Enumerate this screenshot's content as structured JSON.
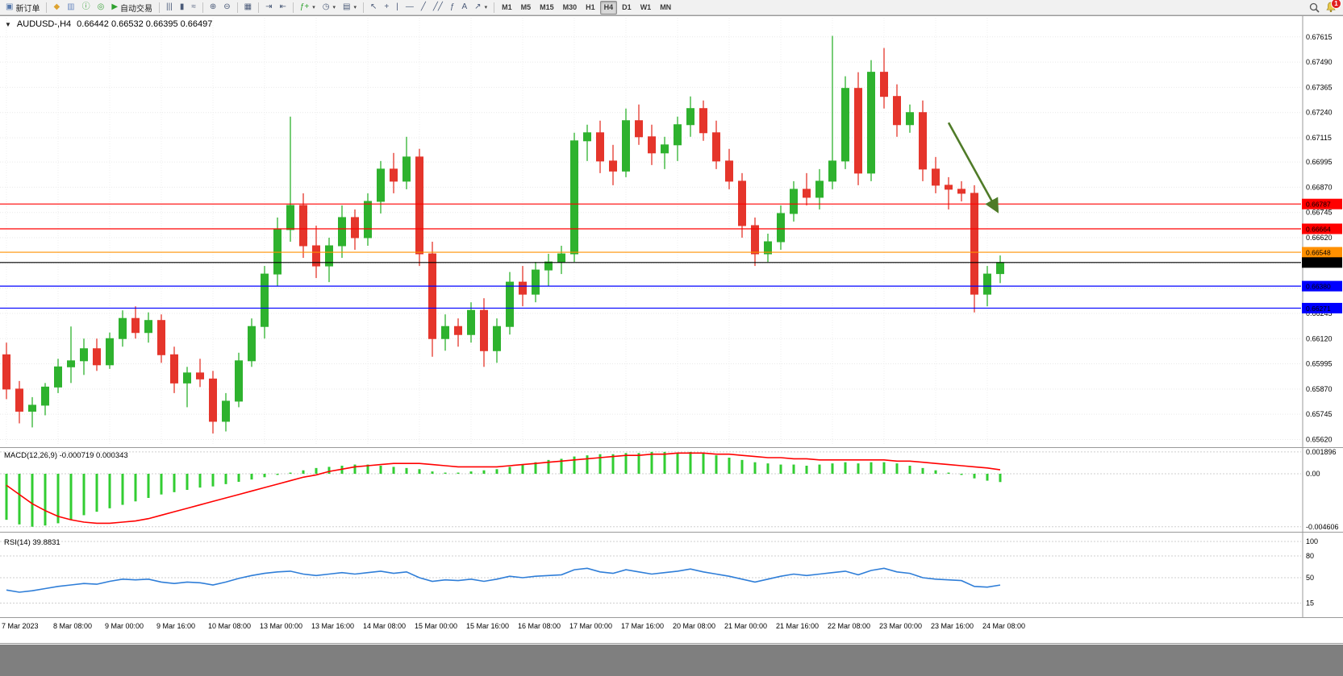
{
  "toolbar": {
    "groups": [
      {
        "items": [
          {
            "name": "new-order",
            "glyph": "▣",
            "glyph_color": "#5577aa",
            "label": "新订单"
          }
        ]
      },
      {
        "items": [
          {
            "name": "market-watch",
            "glyph": "◆",
            "glyph_color": "#dda331"
          },
          {
            "name": "data-window",
            "glyph": "▥",
            "glyph_color": "#6a89c0"
          },
          {
            "name": "navigator",
            "glyph": "ⓘ",
            "glyph_color": "#3fa43f"
          },
          {
            "name": "terminal",
            "glyph": "◎",
            "glyph_color": "#3fa43f"
          },
          {
            "name": "auto-trading",
            "glyph": "▶",
            "glyph_color": "#2fa12f",
            "label": "自动交易"
          }
        ]
      },
      {
        "items": [
          {
            "name": "bar-chart-mode",
            "glyph": "|||"
          },
          {
            "name": "candle-chart-mode",
            "glyph": "▮"
          },
          {
            "name": "line-chart-mode",
            "glyph": "≈"
          }
        ]
      },
      {
        "items": [
          {
            "name": "zoom-in",
            "glyph": "⊕"
          },
          {
            "name": "zoom-out",
            "glyph": "⊖"
          }
        ]
      },
      {
        "items": [
          {
            "name": "tile-windows",
            "glyph": "▦"
          }
        ]
      },
      {
        "items": [
          {
            "name": "auto-scroll",
            "glyph": "⇥"
          },
          {
            "name": "chart-shift",
            "glyph": "⇤"
          }
        ]
      },
      {
        "items": [
          {
            "name": "indicators",
            "glyph": "ƒ+",
            "glyph_color": "#2fa12f",
            "dropdown": true
          },
          {
            "name": "periods",
            "glyph": "◷",
            "dropdown": true
          },
          {
            "name": "templates",
            "glyph": "▤",
            "dropdown": true
          }
        ]
      },
      {
        "items": [
          {
            "name": "cursor-tool",
            "glyph": "↖"
          },
          {
            "name": "crosshair-tool",
            "glyph": "+"
          },
          {
            "name": "vertical-line-tool",
            "glyph": "|"
          },
          {
            "name": "horizontal-line-tool",
            "glyph": "—"
          },
          {
            "name": "trendline-tool",
            "glyph": "╱"
          },
          {
            "name": "channel-tool",
            "glyph": "╱╱"
          },
          {
            "name": "fibonacci-tool",
            "glyph": "ƒ"
          },
          {
            "name": "text-tool",
            "glyph": "A"
          },
          {
            "name": "arrows-tool",
            "glyph": "↗",
            "dropdown": true
          }
        ]
      }
    ],
    "timeframes": [
      "M1",
      "M5",
      "M15",
      "M30",
      "H1",
      "H4",
      "D1",
      "W1",
      "MN"
    ],
    "active_timeframe": "H4",
    "alerts_badge": "1"
  },
  "chart": {
    "header": {
      "collapse_glyph": "▼",
      "symbol_period": "AUDUSD-,H4",
      "ohlc": "0.66442 0.66532 0.66395 0.66497"
    },
    "price_axis": {
      "ticks": [
        "0.67615",
        "0.67490",
        "0.67365",
        "0.67240",
        "0.67115",
        "0.66995",
        "0.66870",
        "0.66745",
        "0.66620",
        "0.66495",
        "0.66370",
        "0.66245",
        "0.66120",
        "0.65995",
        "0.65870",
        "0.65745",
        "0.65620"
      ]
    },
    "price_lines": [
      {
        "label": "0.66787",
        "value": 0.66787,
        "color": "#ff0000"
      },
      {
        "label": "0.66664",
        "value": 0.66664,
        "color": "#ff0000"
      },
      {
        "label": "0.66548",
        "value": 0.66548,
        "color": "#ff9000"
      },
      {
        "label": "0.66497",
        "value": 0.66497,
        "color": "#000000"
      },
      {
        "label": "0.66380",
        "value": 0.6638,
        "color": "#0000ff"
      },
      {
        "label": "0.66271",
        "value": 0.66271,
        "color": "#0000ff"
      }
    ],
    "arrow": {
      "from": {
        "bar": 73,
        "price": 0.6719
      },
      "to": {
        "bar": 76.8,
        "price": 0.6675
      },
      "color": "#4f7b28"
    }
  },
  "chart_data": [
    {
      "type": "candlestick",
      "title": "AUDUSD-,H4",
      "timeframe": "H4",
      "ylim": [
        0.6559,
        0.6771
      ],
      "up_color": "#2eb22e",
      "down_color": "#e5352b",
      "x_tick_every": 4,
      "x_tick_labels": [
        "7 Mar 2023",
        "8 Mar 08:00",
        "9 Mar 00:00",
        "9 Mar 16:00",
        "10 Mar 08:00",
        "13 Mar 00:00",
        "13 Mar 16:00",
        "14 Mar 08:00",
        "15 Mar 00:00",
        "15 Mar 16:00",
        "16 Mar 08:00",
        "17 Mar 00:00",
        "17 Mar 16:00",
        "20 Mar 08:00",
        "21 Mar 00:00",
        "21 Mar 16:00",
        "22 Mar 08:00",
        "23 Mar 00:00",
        "23 Mar 16:00",
        "24 Mar 08:00"
      ],
      "candles": [
        [
          0.6604,
          0.661,
          0.6582,
          0.6587
        ],
        [
          0.6587,
          0.6591,
          0.657,
          0.6576
        ],
        [
          0.6576,
          0.6583,
          0.6568,
          0.6579
        ],
        [
          0.6579,
          0.659,
          0.6574,
          0.6588
        ],
        [
          0.6588,
          0.6602,
          0.6585,
          0.6598
        ],
        [
          0.6598,
          0.6618,
          0.659,
          0.6601
        ],
        [
          0.6601,
          0.6612,
          0.6594,
          0.6607
        ],
        [
          0.6607,
          0.6612,
          0.6596,
          0.6599
        ],
        [
          0.6599,
          0.6615,
          0.6597,
          0.6612
        ],
        [
          0.6612,
          0.6626,
          0.6608,
          0.6622
        ],
        [
          0.6622,
          0.6628,
          0.6612,
          0.6615
        ],
        [
          0.6615,
          0.6625,
          0.661,
          0.6621
        ],
        [
          0.6621,
          0.6624,
          0.66,
          0.6604
        ],
        [
          0.6604,
          0.6608,
          0.6585,
          0.659
        ],
        [
          0.659,
          0.6598,
          0.6578,
          0.6595
        ],
        [
          0.6595,
          0.6602,
          0.6588,
          0.6592
        ],
        [
          0.6592,
          0.6596,
          0.6565,
          0.6571
        ],
        [
          0.6571,
          0.6585,
          0.6566,
          0.6581
        ],
        [
          0.6581,
          0.6605,
          0.6578,
          0.6601
        ],
        [
          0.6601,
          0.6622,
          0.6598,
          0.6618
        ],
        [
          0.6618,
          0.6648,
          0.6612,
          0.6644
        ],
        [
          0.6644,
          0.6672,
          0.6638,
          0.6666
        ],
        [
          0.6666,
          0.6722,
          0.666,
          0.6678
        ],
        [
          0.6678,
          0.6684,
          0.6652,
          0.6658
        ],
        [
          0.6658,
          0.6668,
          0.6642,
          0.6648
        ],
        [
          0.6648,
          0.6662,
          0.664,
          0.6658
        ],
        [
          0.6658,
          0.6678,
          0.6652,
          0.6672
        ],
        [
          0.6672,
          0.6676,
          0.6656,
          0.6662
        ],
        [
          0.6662,
          0.6684,
          0.6658,
          0.668
        ],
        [
          0.668,
          0.67,
          0.6674,
          0.6696
        ],
        [
          0.6696,
          0.6704,
          0.6684,
          0.669
        ],
        [
          0.669,
          0.6712,
          0.6686,
          0.6702
        ],
        [
          0.6702,
          0.6706,
          0.6648,
          0.6654
        ],
        [
          0.6654,
          0.666,
          0.6603,
          0.6612
        ],
        [
          0.6612,
          0.6624,
          0.6606,
          0.6618
        ],
        [
          0.6618,
          0.6622,
          0.6608,
          0.6614
        ],
        [
          0.6614,
          0.663,
          0.661,
          0.6626
        ],
        [
          0.6626,
          0.6632,
          0.6598,
          0.6606
        ],
        [
          0.6606,
          0.6622,
          0.66,
          0.6618
        ],
        [
          0.6618,
          0.6645,
          0.6614,
          0.664
        ],
        [
          0.664,
          0.6648,
          0.6628,
          0.6634
        ],
        [
          0.6634,
          0.665,
          0.663,
          0.6646
        ],
        [
          0.6646,
          0.6654,
          0.6638,
          0.665
        ],
        [
          0.665,
          0.6658,
          0.6644,
          0.6654
        ],
        [
          0.6654,
          0.6714,
          0.665,
          0.671
        ],
        [
          0.671,
          0.6718,
          0.67,
          0.6714
        ],
        [
          0.6714,
          0.672,
          0.6694,
          0.67
        ],
        [
          0.67,
          0.6708,
          0.6688,
          0.6695
        ],
        [
          0.6695,
          0.6726,
          0.6692,
          0.672
        ],
        [
          0.672,
          0.6728,
          0.6708,
          0.6712
        ],
        [
          0.6712,
          0.6718,
          0.6698,
          0.6704
        ],
        [
          0.6704,
          0.6712,
          0.6696,
          0.6708
        ],
        [
          0.6708,
          0.6722,
          0.67,
          0.6718
        ],
        [
          0.6718,
          0.6732,
          0.6712,
          0.6726
        ],
        [
          0.6726,
          0.673,
          0.671,
          0.6714
        ],
        [
          0.6714,
          0.672,
          0.6696,
          0.67
        ],
        [
          0.67,
          0.6706,
          0.6686,
          0.669
        ],
        [
          0.669,
          0.6694,
          0.6662,
          0.6668
        ],
        [
          0.6668,
          0.6672,
          0.6648,
          0.6654
        ],
        [
          0.6654,
          0.6664,
          0.665,
          0.666
        ],
        [
          0.666,
          0.6678,
          0.6656,
          0.6674
        ],
        [
          0.6674,
          0.669,
          0.667,
          0.6686
        ],
        [
          0.6686,
          0.6694,
          0.6678,
          0.6682
        ],
        [
          0.6682,
          0.6696,
          0.6676,
          0.669
        ],
        [
          0.669,
          0.6762,
          0.6686,
          0.67
        ],
        [
          0.67,
          0.6742,
          0.6696,
          0.6736
        ],
        [
          0.6736,
          0.6744,
          0.6688,
          0.6694
        ],
        [
          0.6694,
          0.675,
          0.669,
          0.6744
        ],
        [
          0.6744,
          0.6756,
          0.6726,
          0.6732
        ],
        [
          0.6732,
          0.6738,
          0.6712,
          0.6718
        ],
        [
          0.6718,
          0.6728,
          0.6714,
          0.6724
        ],
        [
          0.6724,
          0.673,
          0.669,
          0.6696
        ],
        [
          0.6696,
          0.6702,
          0.6684,
          0.6688
        ],
        [
          0.6688,
          0.6692,
          0.6676,
          0.6686
        ],
        [
          0.6686,
          0.669,
          0.668,
          0.6684
        ],
        [
          0.6684,
          0.6688,
          0.6625,
          0.6634
        ],
        [
          0.6634,
          0.6648,
          0.6628,
          0.6644
        ],
        [
          0.66442,
          0.66532,
          0.66395,
          0.66497
        ]
      ]
    },
    {
      "type": "macd",
      "title": "MACD(12,26,9)",
      "values_label": "-0.000719 0.000343",
      "levels": [
        "0.001896",
        "0.00",
        "-0.004606"
      ],
      "histogram_color": "#32cd32",
      "signal_color": "#ff0000",
      "histogram": [
        -0.004,
        -0.0044,
        -0.0046,
        -0.0045,
        -0.0043,
        -0.004,
        -0.0036,
        -0.0033,
        -0.003,
        -0.0027,
        -0.0024,
        -0.0021,
        -0.0018,
        -0.0016,
        -0.0014,
        -0.0012,
        -0.0011,
        -0.0009,
        -0.0007,
        -0.0005,
        -0.0003,
        -0.0001,
        0.0001,
        0.0003,
        0.0005,
        0.0006,
        0.0007,
        0.0008,
        0.0008,
        0.0007,
        0.0006,
        0.0005,
        0.0004,
        0.0002,
        0.0001,
        0.0001,
        0.0002,
        0.0003,
        0.0004,
        0.0006,
        0.0008,
        0.001,
        0.0012,
        0.0013,
        0.0015,
        0.0016,
        0.0017,
        0.0017,
        0.0018,
        0.0018,
        0.0019,
        0.0019,
        0.0018,
        0.0019,
        0.0018,
        0.0016,
        0.0014,
        0.0012,
        0.001,
        0.0009,
        0.0008,
        0.0008,
        0.0007,
        0.0008,
        0.0009,
        0.001,
        0.0009,
        0.001,
        0.001,
        0.0009,
        0.0007,
        0.0005,
        0.0003,
        0.0001,
        -0.0001,
        -0.0004,
        -0.0006,
        -0.000719
      ],
      "signal": [
        -0.001,
        -0.0018,
        -0.0026,
        -0.0032,
        -0.0037,
        -0.004,
        -0.0042,
        -0.0043,
        -0.0043,
        -0.0042,
        -0.0041,
        -0.0039,
        -0.0036,
        -0.0033,
        -0.003,
        -0.0027,
        -0.0024,
        -0.0021,
        -0.0018,
        -0.0015,
        -0.0012,
        -0.0009,
        -0.0006,
        -0.0003,
        -0.0001,
        0.0002,
        0.0004,
        0.0006,
        0.0007,
        0.0008,
        0.0009,
        0.0009,
        0.0009,
        0.0008,
        0.0007,
        0.0006,
        0.0006,
        0.0006,
        0.0006,
        0.0007,
        0.0008,
        0.0009,
        0.001,
        0.0011,
        0.0012,
        0.0013,
        0.0014,
        0.0015,
        0.0016,
        0.0016,
        0.0017,
        0.0017,
        0.0018,
        0.0018,
        0.0018,
        0.0017,
        0.0017,
        0.0016,
        0.0015,
        0.0014,
        0.0014,
        0.0013,
        0.0013,
        0.0012,
        0.0012,
        0.0012,
        0.0012,
        0.0012,
        0.0012,
        0.0011,
        0.0011,
        0.001,
        0.0009,
        0.0008,
        0.0007,
        0.0006,
        0.0005,
        0.000343
      ]
    },
    {
      "type": "line",
      "title": "RSI(14)",
      "values_label": "39.8831",
      "ylim": [
        0,
        100
      ],
      "levels": [
        "100",
        "80",
        "50",
        "15"
      ],
      "line_color": "#2f7ed8",
      "values": [
        33,
        30,
        32,
        35,
        38,
        40,
        42,
        41,
        45,
        48,
        47,
        48,
        44,
        42,
        44,
        43,
        40,
        44,
        49,
        53,
        56,
        58,
        59,
        55,
        53,
        55,
        57,
        55,
        57,
        59,
        56,
        58,
        50,
        45,
        47,
        46,
        48,
        45,
        48,
        52,
        50,
        52,
        53,
        54,
        61,
        63,
        58,
        56,
        61,
        58,
        55,
        57,
        59,
        62,
        58,
        55,
        52,
        48,
        44,
        48,
        52,
        55,
        53,
        55,
        57,
        59,
        54,
        60,
        63,
        58,
        56,
        50,
        48,
        47,
        46,
        38,
        37,
        39.8831
      ]
    }
  ]
}
